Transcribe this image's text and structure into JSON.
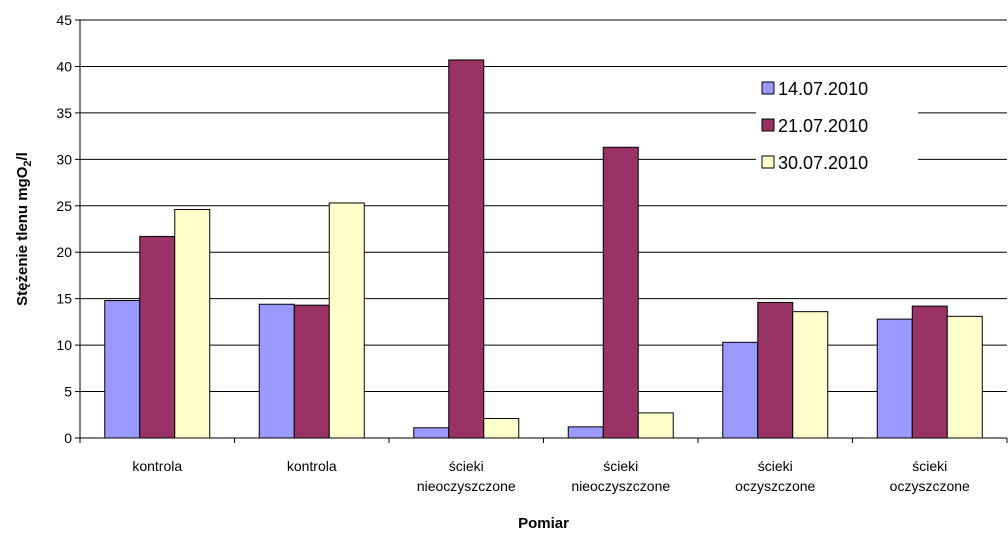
{
  "chart_data": {
    "type": "bar",
    "xlabel": "Pomiar",
    "ylabel": {
      "prefix": "Stężenie tlenu mgO",
      "subscript": "2",
      "suffix": "/l"
    },
    "ylim": [
      0,
      45
    ],
    "yticks": [
      0,
      5,
      10,
      15,
      20,
      25,
      30,
      35,
      40,
      45
    ],
    "grid": true,
    "legend_position": "right",
    "categories": [
      [
        "kontrola"
      ],
      [
        "kontrola"
      ],
      [
        "ścieki",
        "nieoczyszczone"
      ],
      [
        "ścieki",
        "nieoczyszczone"
      ],
      [
        "ścieki",
        "oczyszczone"
      ],
      [
        "ścieki",
        "oczyszczone"
      ]
    ],
    "series": [
      {
        "name": "14.07.2010",
        "color": "#9999FF",
        "values": [
          14.8,
          14.4,
          1.1,
          1.2,
          10.3,
          12.8
        ]
      },
      {
        "name": "21.07.2010",
        "color": "#993366",
        "values": [
          21.7,
          14.3,
          40.7,
          31.3,
          14.6,
          14.2
        ]
      },
      {
        "name": "30.07.2010",
        "color": "#FFFFCC",
        "values": [
          24.6,
          25.3,
          2.1,
          2.7,
          13.6,
          13.1
        ]
      }
    ]
  }
}
